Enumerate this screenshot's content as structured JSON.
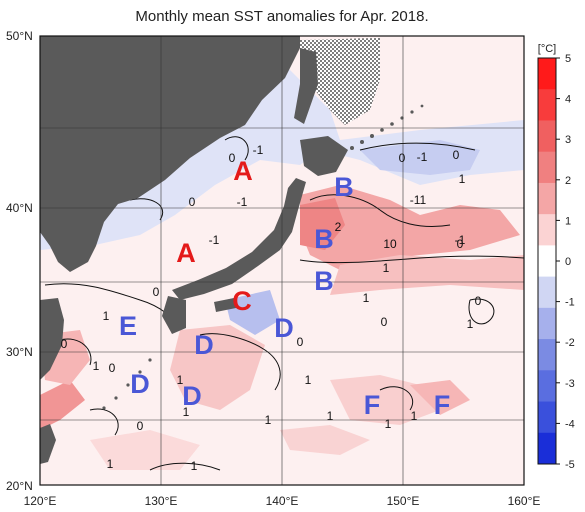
{
  "title": "Monthly mean SST anomalies for Apr. 2018.",
  "lat_labels": [
    "50°N",
    "40°N",
    "30°N",
    "20°N"
  ],
  "lon_labels": [
    "120°E",
    "130°E",
    "140°E",
    "150°E",
    "160°E"
  ],
  "colorbar": {
    "unit": "[°C]",
    "ticks": [
      "5",
      "4",
      "3",
      "2",
      "1",
      "0",
      "-1",
      "-2",
      "-3",
      "-4",
      "-5"
    ],
    "colors": [
      "#ff1a1a",
      "#f83c3c",
      "#f06060",
      "#f08080",
      "#f4a6a6",
      "#fbd3d3",
      "#ffffff",
      "#d0d6f3",
      "#a6b0ec",
      "#7b8be3",
      "#5a6ee0",
      "#3a50dc",
      "#1a2ed8"
    ]
  },
  "land_color": "#5a5a5a",
  "region_labels": [
    {
      "text": "A",
      "color": "#e41a1a"
    },
    {
      "text": "A",
      "color": "#e41a1a"
    },
    {
      "text": "B",
      "color": "#4a57d6"
    },
    {
      "text": "B",
      "color": "#4a57d6"
    },
    {
      "text": "B",
      "color": "#4a57d6"
    },
    {
      "text": "C",
      "color": "#e41a1a"
    },
    {
      "text": "D",
      "color": "#4a57d6"
    },
    {
      "text": "D",
      "color": "#4a57d6"
    },
    {
      "text": "D",
      "color": "#4a57d6"
    },
    {
      "text": "D",
      "color": "#4a57d6"
    },
    {
      "text": "E",
      "color": "#4a57d6"
    },
    {
      "text": "F",
      "color": "#4a57d6"
    },
    {
      "text": "F",
      "color": "#4a57d6"
    }
  ],
  "contour_labels": [
    "0",
    "-1",
    "-1",
    "0",
    "-1",
    "-1",
    "0",
    "0",
    "-1",
    "1",
    "-11",
    "2",
    "10",
    "0",
    "1",
    "0",
    "1",
    "1",
    "0",
    "1",
    "0",
    "1",
    "0",
    "1",
    "1",
    "0",
    "1",
    "1",
    "1",
    "1",
    "1",
    "0",
    "1",
    "1",
    "0"
  ]
}
